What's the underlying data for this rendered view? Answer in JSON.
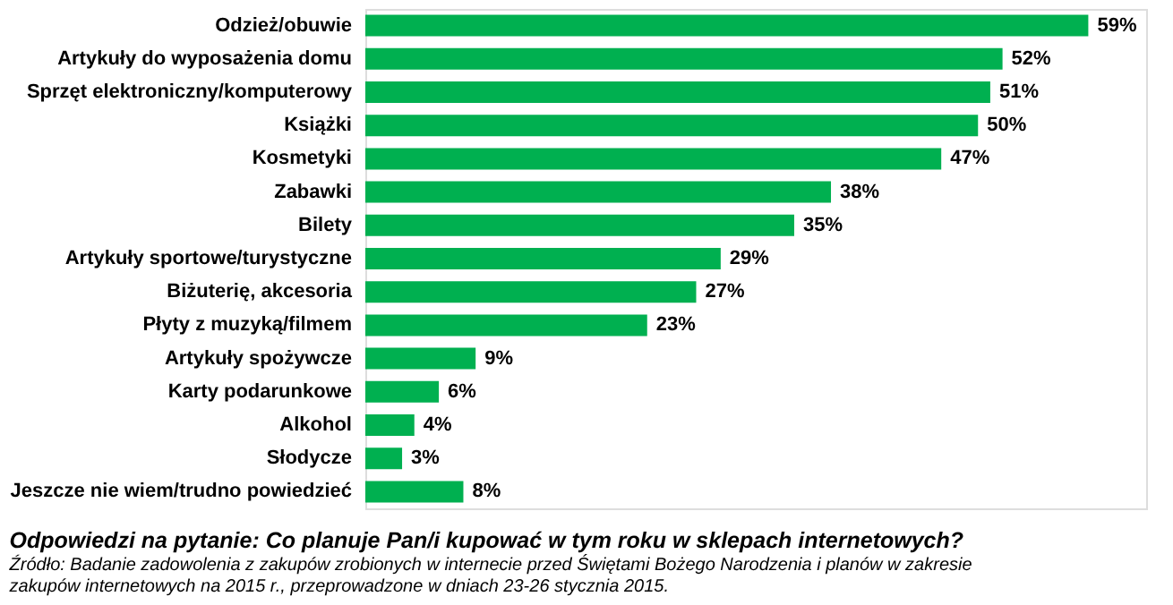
{
  "chart_data": {
    "type": "bar",
    "orientation": "horizontal",
    "title": "Odpowiedzi na pytanie: Co planuje Pan/i kupować w tym roku w sklepach internetowych?",
    "categories": [
      "Odzież/obuwie",
      "Artykuły do wyposażenia domu",
      "Sprzęt elektroniczny/komputerowy",
      "Książki",
      "Kosmetyki",
      "Zabawki",
      "Bilety",
      "Artykuły sportowe/turystyczne",
      "Biżuterię, akcesoria",
      "Płyty z muzyką/filmem",
      "Artykuły spożywcze",
      "Karty podarunkowe",
      "Alkohol",
      "Słodycze",
      "Jeszcze nie wiem/trudno powiedzieć"
    ],
    "values": [
      59,
      52,
      51,
      50,
      47,
      38,
      35,
      29,
      27,
      23,
      9,
      6,
      4,
      3,
      8
    ],
    "value_labels": [
      "59%",
      "52%",
      "51%",
      "50%",
      "47%",
      "38%",
      "35%",
      "29%",
      "27%",
      "23%",
      "9%",
      "6%",
      "4%",
      "3%",
      "8%"
    ],
    "color": "#00b050",
    "annotations": [
      "Źródło: Badanie zadowolenia z zakupów zrobionych w internecie przed Świętami Bożego Narodzenia i planów w zakresie zakupów internetowych na 2015 r., przeprowadzone w dniach 23-26 stycznia 2015."
    ],
    "legend": false
  }
}
